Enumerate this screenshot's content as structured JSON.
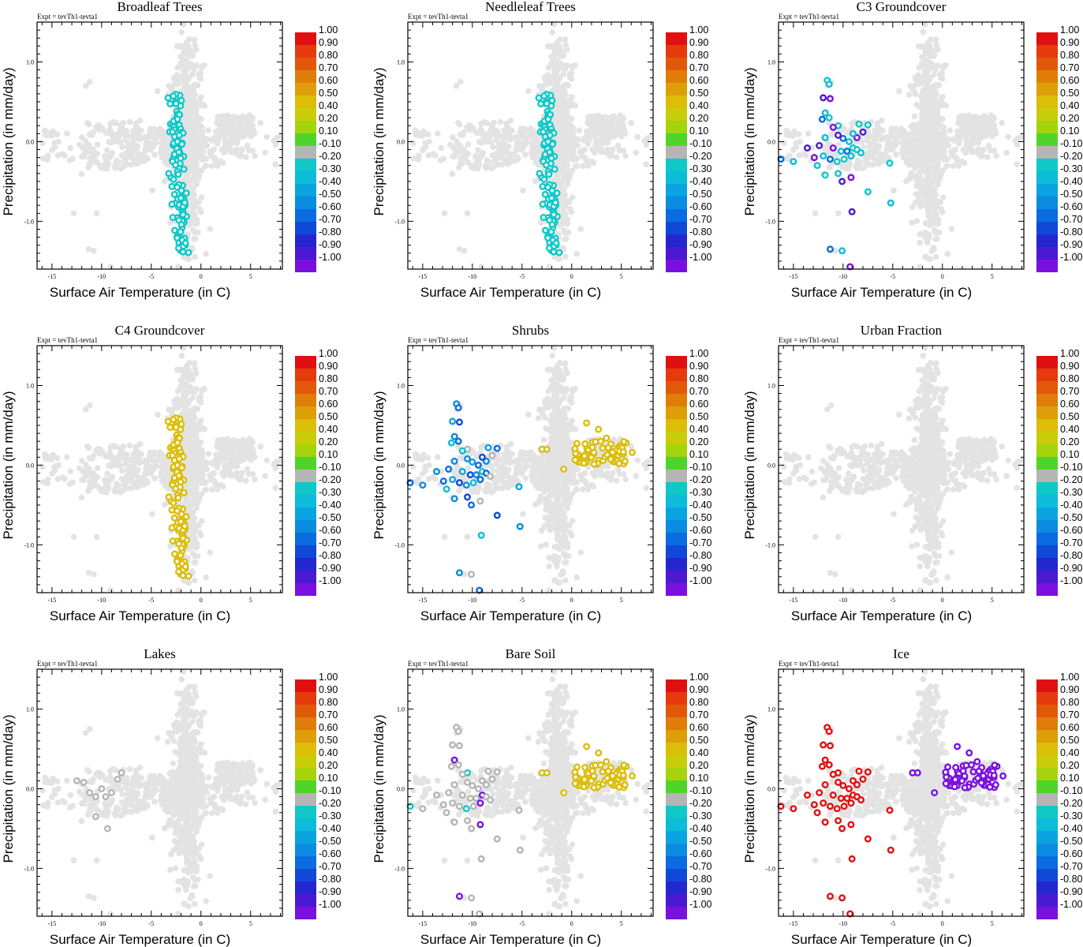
{
  "figure": {
    "subtitle": "Expt = tevTh1-tevta1",
    "xlabel": "Surface Air Temperature (in C)",
    "ylabel": "Precipitation (in mm/day)",
    "xticks": [
      "-15",
      "-10",
      "-5",
      "0",
      "5"
    ],
    "xtick_values": [
      -15,
      -10,
      -5,
      0,
      5
    ],
    "yticks": [
      "1.0",
      "0.0",
      "-1.0"
    ],
    "ytick_values": [
      1.0,
      0.0,
      -1.0
    ],
    "xlim": [
      -16.5,
      8.2
    ],
    "ylim": [
      -1.6,
      1.5
    ],
    "background_point_color": "#e3e3e3",
    "colorbar": {
      "labels": [
        "1.00",
        "0.90",
        "0.80",
        "0.70",
        "0.60",
        "0.50",
        "0.40",
        "0.20",
        "0.10",
        "-0.10",
        "-0.20",
        "-0.30",
        "-0.40",
        "-0.50",
        "-0.60",
        "-0.70",
        "-0.80",
        "-0.90",
        "-1.00"
      ],
      "colors": [
        "#e01010",
        "#e43a0c",
        "#e2580a",
        "#e07d08",
        "#de9e08",
        "#dcbd08",
        "#c9cc08",
        "#a5d40c",
        "#4fd52a",
        "#b5b5b5",
        "#10c8c8",
        "#0cbcd8",
        "#0aa4e0",
        "#0a8ce0",
        "#0a6ce0",
        "#1048d8",
        "#2426d0",
        "#4a1ad0",
        "#7a10e0"
      ]
    }
  },
  "chart_data": [
    {
      "type": "scatter",
      "title": "Broadleaf Trees",
      "highlight": "trees"
    },
    {
      "type": "scatter",
      "title": "Needleleaf Trees",
      "highlight": "trees"
    },
    {
      "type": "scatter",
      "title": "C3 Groundcover",
      "highlight": "c3"
    },
    {
      "type": "scatter",
      "title": "C4 Groundcover",
      "highlight": "c4"
    },
    {
      "type": "scatter",
      "title": "Shrubs",
      "highlight": "shrubs"
    },
    {
      "type": "scatter",
      "title": "Urban Fraction",
      "highlight": "none"
    },
    {
      "type": "scatter",
      "title": "Lakes",
      "highlight": "lakes"
    },
    {
      "type": "scatter",
      "title": "Bare Soil",
      "highlight": "soil"
    },
    {
      "type": "scatter",
      "title": "Ice",
      "highlight": "ice"
    }
  ]
}
